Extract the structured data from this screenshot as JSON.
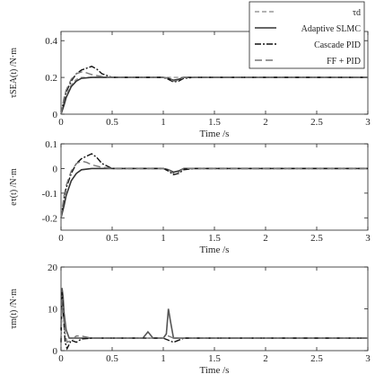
{
  "chart_data": [
    {
      "type": "line",
      "ylabel": "τSEA(t) /N·m",
      "xlabel": "Time /s",
      "xlim": [
        0,
        3
      ],
      "ylim": [
        0,
        0.45
      ],
      "xticks": [
        "0",
        "0.5",
        "1",
        "1.5",
        "2",
        "2.5",
        "3"
      ],
      "yticks": [
        "0",
        "0.2",
        "0.4"
      ],
      "grid": false,
      "legend": {
        "placement": "top-right",
        "entries": [
          "τd",
          "Adaptive SLMC",
          "Cascade PID",
          "FF + PID"
        ]
      },
      "series": [
        {
          "name": "τd",
          "style": "dashed",
          "color": "#999999",
          "x": [
            0,
            0.03,
            0.05,
            0.1,
            0.15,
            0.2,
            0.3,
            0.4,
            0.5,
            1.0,
            1.05,
            1.1,
            1.15,
            1.2,
            1.3,
            1.5,
            2.0,
            2.5,
            3.0
          ],
          "y": [
            0,
            0.06,
            0.1,
            0.16,
            0.19,
            0.2,
            0.2,
            0.2,
            0.2,
            0.2,
            0.2,
            0.2,
            0.2,
            0.2,
            0.2,
            0.2,
            0.2,
            0.2,
            0.2
          ]
        },
        {
          "name": "Adaptive SLMC",
          "style": "solid",
          "color": "#333333",
          "x": [
            0,
            0.03,
            0.05,
            0.1,
            0.15,
            0.2,
            0.3,
            0.4,
            0.5,
            1.0,
            1.05,
            1.1,
            1.15,
            1.2,
            1.3,
            1.5,
            2.0,
            2.5,
            3.0
          ],
          "y": [
            0,
            0.05,
            0.09,
            0.15,
            0.18,
            0.195,
            0.2,
            0.2,
            0.2,
            0.2,
            0.195,
            0.185,
            0.19,
            0.2,
            0.2,
            0.2,
            0.2,
            0.2,
            0.2
          ]
        },
        {
          "name": "Cascade PID",
          "style": "dashdot",
          "color": "#111111",
          "x": [
            0,
            0.03,
            0.05,
            0.1,
            0.15,
            0.2,
            0.25,
            0.3,
            0.35,
            0.4,
            0.5,
            0.6,
            1.0,
            1.05,
            1.1,
            1.15,
            1.2,
            1.3,
            1.5,
            2.0,
            2.5,
            3.0
          ],
          "y": [
            0,
            0.08,
            0.12,
            0.18,
            0.22,
            0.24,
            0.25,
            0.26,
            0.245,
            0.22,
            0.2,
            0.2,
            0.2,
            0.19,
            0.175,
            0.18,
            0.195,
            0.2,
            0.2,
            0.2,
            0.2,
            0.2
          ]
        },
        {
          "name": "FF + PID",
          "style": "longdash",
          "color": "#777777",
          "x": [
            0,
            0.03,
            0.05,
            0.1,
            0.15,
            0.2,
            0.25,
            0.3,
            0.4,
            0.5,
            1.0,
            1.05,
            1.1,
            1.15,
            1.2,
            1.3,
            1.5,
            2.0,
            2.5,
            3.0
          ],
          "y": [
            0,
            0.09,
            0.13,
            0.19,
            0.22,
            0.23,
            0.225,
            0.215,
            0.205,
            0.2,
            0.2,
            0.195,
            0.18,
            0.185,
            0.2,
            0.2,
            0.2,
            0.2,
            0.2,
            0.2
          ]
        }
      ]
    },
    {
      "type": "line",
      "ylabel": "eτ(t) /N·m",
      "xlabel": "Time /s",
      "xlim": [
        0,
        3
      ],
      "ylim": [
        -0.25,
        0.1
      ],
      "xticks": [
        "0",
        "0.5",
        "1",
        "1.5",
        "2",
        "2.5",
        "3"
      ],
      "yticks": [
        "0.1",
        "0",
        "-0.1",
        "-0.2"
      ],
      "grid": false,
      "series": [
        {
          "name": "Adaptive SLMC",
          "style": "solid",
          "color": "#333333",
          "x": [
            0,
            0.03,
            0.05,
            0.1,
            0.15,
            0.2,
            0.3,
            0.4,
            0.5,
            1.0,
            1.05,
            1.1,
            1.15,
            1.2,
            1.3,
            1.5,
            2.0,
            2.5,
            3.0
          ],
          "y": [
            -0.2,
            -0.15,
            -0.11,
            -0.05,
            -0.02,
            -0.005,
            0,
            0,
            0,
            0,
            -0.005,
            -0.015,
            -0.01,
            0,
            0,
            0,
            0,
            0,
            0
          ]
        },
        {
          "name": "Cascade PID",
          "style": "dashdot",
          "color": "#111111",
          "x": [
            0,
            0.03,
            0.05,
            0.1,
            0.15,
            0.2,
            0.25,
            0.3,
            0.35,
            0.4,
            0.5,
            0.6,
            1.0,
            1.05,
            1.1,
            1.15,
            1.2,
            1.3,
            1.5,
            2.0,
            2.5,
            3.0
          ],
          "y": [
            -0.2,
            -0.12,
            -0.08,
            -0.02,
            0.02,
            0.04,
            0.05,
            0.06,
            0.045,
            0.02,
            0,
            0,
            0,
            -0.01,
            -0.025,
            -0.02,
            -0.005,
            0,
            0,
            0,
            0,
            0
          ]
        },
        {
          "name": "FF + PID",
          "style": "longdash",
          "color": "#777777",
          "x": [
            0,
            0.03,
            0.05,
            0.1,
            0.15,
            0.2,
            0.25,
            0.3,
            0.4,
            0.5,
            1.0,
            1.05,
            1.1,
            1.15,
            1.2,
            1.3,
            1.5,
            2.0,
            2.5,
            3.0
          ],
          "y": [
            -0.2,
            -0.11,
            -0.07,
            -0.01,
            0.02,
            0.03,
            0.025,
            0.015,
            0.005,
            0,
            0,
            -0.005,
            -0.02,
            -0.015,
            0,
            0,
            0,
            0,
            0,
            0
          ]
        }
      ]
    },
    {
      "type": "line",
      "ylabel": "τm(t) /N·m",
      "xlabel": "Time /s",
      "xlim": [
        0,
        3
      ],
      "ylim": [
        0,
        20
      ],
      "xticks": [
        "0",
        "0.5",
        "1",
        "1.5",
        "2",
        "2.5",
        "3"
      ],
      "yticks": [
        "20",
        "10",
        "0"
      ],
      "grid": false,
      "series": [
        {
          "name": "Adaptive SLMC",
          "style": "solid",
          "color": "#555555",
          "x": [
            0,
            0.01,
            0.02,
            0.03,
            0.05,
            0.08,
            0.1,
            0.15,
            0.2,
            0.3,
            0.4,
            0.5,
            0.6,
            0.7,
            0.8,
            0.85,
            0.9,
            1.0,
            1.03,
            1.05,
            1.07,
            1.1,
            1.2,
            1.5,
            2.0,
            2.5,
            3.0
          ],
          "y": [
            5,
            15,
            13,
            9,
            5,
            3,
            3,
            3,
            3,
            3,
            3,
            3,
            3,
            3,
            3,
            4.5,
            3,
            3,
            4,
            10,
            7,
            3,
            3,
            3,
            3,
            3,
            3
          ]
        },
        {
          "name": "Cascade PID",
          "style": "dashdot",
          "color": "#111111",
          "x": [
            0,
            0.01,
            0.02,
            0.04,
            0.06,
            0.1,
            0.15,
            0.2,
            0.3,
            0.5,
            0.8,
            1.0,
            1.05,
            1.1,
            1.2,
            1.5,
            2.0,
            2.5,
            3.0
          ],
          "y": [
            2,
            14,
            10,
            2,
            0.5,
            2.5,
            2,
            2.8,
            3,
            3,
            3,
            3,
            2.5,
            2,
            3,
            3,
            3,
            3,
            3
          ]
        },
        {
          "name": "FF + PID",
          "style": "longdash",
          "color": "#777777",
          "x": [
            0,
            0.01,
            0.02,
            0.04,
            0.06,
            0.1,
            0.15,
            0.2,
            0.3,
            0.5,
            0.8,
            1.0,
            1.05,
            1.1,
            1.2,
            1.5,
            2.0,
            2.5,
            3.0
          ],
          "y": [
            3,
            12,
            9,
            4,
            2,
            2.5,
            3.5,
            3.5,
            3,
            3,
            3,
            3,
            3.5,
            3,
            3,
            3,
            3,
            3,
            3
          ]
        }
      ]
    }
  ]
}
